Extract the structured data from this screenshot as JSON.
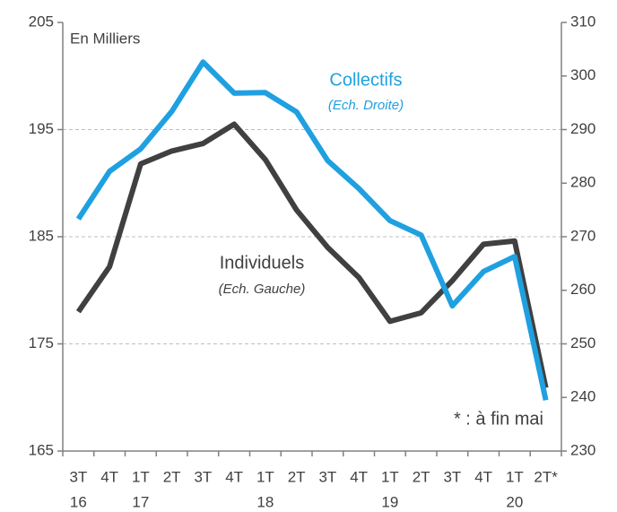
{
  "chart_data": {
    "type": "line",
    "categories": [
      "3T",
      "4T",
      "1T",
      "2T",
      "3T",
      "4T",
      "1T",
      "2T",
      "3T",
      "4T",
      "1T",
      "2T",
      "3T",
      "4T",
      "1T",
      "2T*"
    ],
    "years": [
      "16",
      null,
      "17",
      null,
      null,
      null,
      "18",
      null,
      null,
      null,
      "19",
      null,
      null,
      null,
      "20",
      null
    ],
    "series": [
      {
        "name": "Individuels",
        "subtitle": "(Ech. Gauche)",
        "color": "#404040",
        "axis": "y",
        "values": [
          178.0,
          182.2,
          191.8,
          193.0,
          193.7,
          195.5,
          192.2,
          187.5,
          184.0,
          181.2,
          177.1,
          177.9,
          180.9,
          184.3,
          184.6,
          170.9
        ]
      },
      {
        "name": "Collectifs",
        "subtitle": "(Ech. Droite)",
        "color": "#1fa0e0",
        "axis": "y2",
        "values": [
          273.3,
          282.2,
          286.4,
          293.4,
          302.6,
          296.8,
          296.9,
          293.3,
          284.2,
          279.0,
          273.0,
          270.3,
          257.1,
          263.5,
          266.3,
          239.5
        ]
      }
    ],
    "ylim": [
      165,
      205
    ],
    "yticks": [
      165,
      175,
      185,
      195,
      205
    ],
    "y2lim": [
      230,
      310
    ],
    "y2ticks": [
      230,
      240,
      250,
      260,
      270,
      280,
      290,
      300,
      310
    ],
    "grid": true,
    "annotations": {
      "unit": "En Milliers",
      "note": "* : à fin mai"
    }
  }
}
